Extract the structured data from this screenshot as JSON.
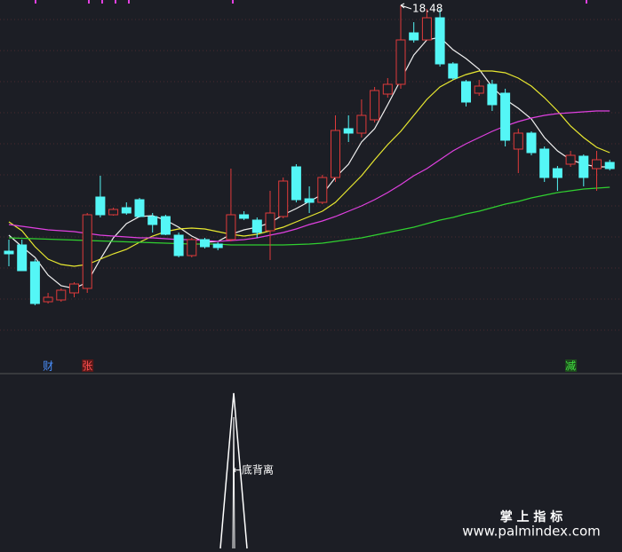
{
  "chart_data": {
    "type": "candlestick",
    "up_color": "#e03a3a",
    "down_color": "#54f6f6",
    "ylim": [
      10.2,
      18.6
    ],
    "open": [
      12.94,
      13.08,
      12.7,
      11.8,
      11.84,
      12.0,
      12.1,
      14.16,
      13.76,
      13.92,
      14.1,
      13.72,
      13.72,
      13.3,
      12.84,
      13.2,
      13.1,
      13.2,
      13.76,
      13.64,
      13.4,
      13.72,
      14.84,
      14.12,
      14.04,
      14.6,
      15.7,
      15.6,
      15.9,
      16.48,
      16.7,
      17.86,
      17.7,
      18.2,
      17.16,
      16.76,
      16.5,
      16.7,
      16.5,
      15.24,
      15.6,
      15.24,
      14.8,
      14.9,
      15.08,
      14.8,
      14.94
    ],
    "high": [
      13.2,
      13.2,
      12.76,
      12.0,
      12.1,
      12.24,
      13.8,
      14.64,
      13.92,
      14.04,
      14.14,
      13.8,
      13.76,
      13.36,
      13.24,
      13.24,
      13.14,
      14.8,
      13.84,
      13.7,
      14.3,
      14.6,
      14.9,
      14.4,
      14.66,
      16.0,
      16.0,
      16.36,
      16.64,
      16.84,
      18.48,
      18.1,
      18.4,
      18.4,
      17.2,
      16.8,
      16.8,
      16.8,
      16.6,
      15.7,
      15.64,
      15.3,
      14.86,
      15.2,
      15.12,
      15.2,
      15.0
    ],
    "low": [
      12.6,
      12.5,
      11.72,
      11.76,
      11.8,
      11.9,
      12.0,
      13.7,
      13.74,
      13.76,
      13.7,
      13.36,
      13.3,
      12.8,
      12.8,
      13.0,
      12.96,
      13.16,
      13.64,
      13.24,
      12.74,
      13.68,
      14.04,
      13.8,
      14.0,
      14.5,
      15.4,
      15.5,
      15.84,
      16.4,
      16.6,
      17.64,
      17.7,
      17.1,
      16.8,
      16.2,
      16.44,
      16.1,
      15.3,
      14.7,
      15.1,
      14.5,
      14.3,
      14.84,
      14.4,
      14.3,
      14.76
    ],
    "close": [
      12.88,
      12.5,
      11.76,
      11.9,
      12.06,
      12.2,
      13.76,
      13.76,
      13.88,
      13.8,
      13.72,
      13.54,
      13.32,
      12.84,
      13.2,
      13.04,
      13.02,
      13.76,
      13.68,
      13.36,
      13.8,
      14.52,
      14.1,
      14.04,
      14.6,
      15.66,
      15.6,
      16.0,
      16.56,
      16.7,
      17.7,
      17.7,
      18.2,
      17.16,
      16.84,
      16.3,
      16.66,
      16.24,
      15.44,
      15.6,
      15.16,
      14.6,
      14.6,
      15.1,
      14.6,
      15.0,
      14.8
    ],
    "series": [
      {
        "color": "#f0f0f0",
        "values": [
          13.3,
          13.04,
          12.8,
          12.4,
          12.16,
          12.1,
          12.24,
          12.76,
          13.24,
          13.56,
          13.72,
          13.74,
          13.64,
          13.48,
          13.28,
          13.14,
          13.16,
          13.32,
          13.42,
          13.48,
          13.58,
          13.76,
          13.9,
          14.06,
          14.22,
          14.6,
          14.9,
          15.4,
          15.7,
          16.24,
          16.8,
          17.36,
          17.7,
          17.76,
          17.48,
          17.28,
          17.04,
          16.64,
          16.36,
          16.16,
          15.92,
          15.5,
          15.2,
          15.0,
          14.9,
          14.84,
          14.84
        ]
      },
      {
        "color": "#e8e830",
        "values": [
          13.6,
          13.4,
          13.04,
          12.76,
          12.64,
          12.6,
          12.64,
          12.76,
          12.88,
          12.98,
          13.14,
          13.28,
          13.38,
          13.44,
          13.46,
          13.44,
          13.38,
          13.32,
          13.28,
          13.32,
          13.4,
          13.48,
          13.6,
          13.72,
          13.84,
          14.04,
          14.34,
          14.64,
          15.0,
          15.34,
          15.64,
          16.0,
          16.36,
          16.64,
          16.8,
          16.92,
          17.0,
          17.0,
          16.96,
          16.84,
          16.66,
          16.4,
          16.1,
          15.76,
          15.5,
          15.28,
          15.16
        ]
      },
      {
        "color": "#e040e0",
        "values": [
          13.54,
          13.5,
          13.46,
          13.42,
          13.4,
          13.38,
          13.34,
          13.3,
          13.28,
          13.26,
          13.24,
          13.24,
          13.22,
          13.2,
          13.2,
          13.18,
          13.16,
          13.18,
          13.2,
          13.24,
          13.3,
          13.36,
          13.44,
          13.54,
          13.62,
          13.72,
          13.84,
          13.96,
          14.1,
          14.26,
          14.44,
          14.64,
          14.8,
          15.0,
          15.2,
          15.36,
          15.5,
          15.64,
          15.76,
          15.86,
          15.94,
          16.0,
          16.04,
          16.06,
          16.08,
          16.1,
          16.1
        ]
      },
      {
        "color": "#30d030",
        "values": [
          13.24,
          13.23,
          13.22,
          13.21,
          13.2,
          13.19,
          13.18,
          13.17,
          13.16,
          13.15,
          13.14,
          13.13,
          13.12,
          13.11,
          13.1,
          13.1,
          13.1,
          13.08,
          13.08,
          13.08,
          13.08,
          13.08,
          13.09,
          13.1,
          13.12,
          13.16,
          13.2,
          13.24,
          13.3,
          13.36,
          13.42,
          13.48,
          13.56,
          13.64,
          13.7,
          13.78,
          13.84,
          13.92,
          14.0,
          14.06,
          14.14,
          14.2,
          14.26,
          14.3,
          14.34,
          14.36,
          14.38
        ]
      }
    ],
    "high_label": "18.48",
    "signals": [
      {
        "text": "财",
        "color": "#4a90ff"
      },
      {
        "text": "张",
        "color": "#ff5050"
      },
      {
        "text": "减",
        "color": "#40e040"
      }
    ],
    "indicator_label": "←底背离"
  },
  "watermark": {
    "title": "掌 上 指 标",
    "url": "www.palmindex.com"
  }
}
